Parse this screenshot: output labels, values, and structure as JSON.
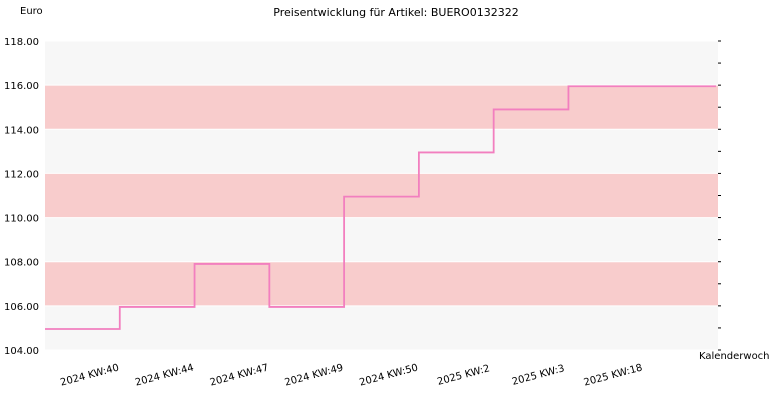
{
  "chart_data": {
    "type": "line",
    "step": true,
    "title": "Preisentwicklung für Artikel: BUERO0132322",
    "ylabel": "Euro",
    "xlabel": "Kalenderwoche",
    "categories": [
      "2024 KW:40",
      "2024 KW:44",
      "2024 KW:47",
      "2024 KW:49",
      "2024 KW:50",
      "2025 KW:2",
      "2025 KW:3",
      "2025 KW:18"
    ],
    "series": [
      {
        "values": [
          104.95,
          105.95,
          107.9,
          105.95,
          110.95,
          112.95,
          114.9,
          115.95
        ]
      }
    ],
    "ylim": [
      104,
      118
    ],
    "yticks": [
      "104.00",
      "106.00",
      "108.00",
      "110.00",
      "112.00",
      "114.00",
      "116.00",
      "118.00"
    ],
    "grid": true,
    "colors": {
      "line": "#f27fbf",
      "band_pink": "#f8cccc",
      "band_light": "#f7f7f7"
    }
  }
}
